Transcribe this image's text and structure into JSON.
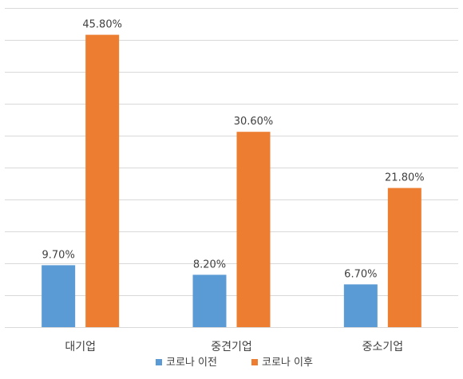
{
  "chart_data": {
    "type": "bar",
    "categories": [
      "대기업",
      "중견기업",
      "중소기업"
    ],
    "series": [
      {
        "name": "코로나 이전",
        "values": [
          9.7,
          8.2,
          6.7
        ],
        "labels": [
          "9.70%",
          "8.20%",
          "6.70%"
        ],
        "color": "#5B9BD5"
      },
      {
        "name": "코로나 이후",
        "values": [
          45.8,
          30.6,
          21.8
        ],
        "labels": [
          "45.80%",
          "30.60%",
          "21.80%"
        ],
        "color": "#ED7D31"
      }
    ],
    "ylim": [
      0,
      50
    ],
    "y_gridlines": true,
    "y_tick_labels_visible": false,
    "gridline_color": "#D9D9D9",
    "legend_position": "bottom",
    "title": "",
    "xlabel": "",
    "ylabel": ""
  }
}
